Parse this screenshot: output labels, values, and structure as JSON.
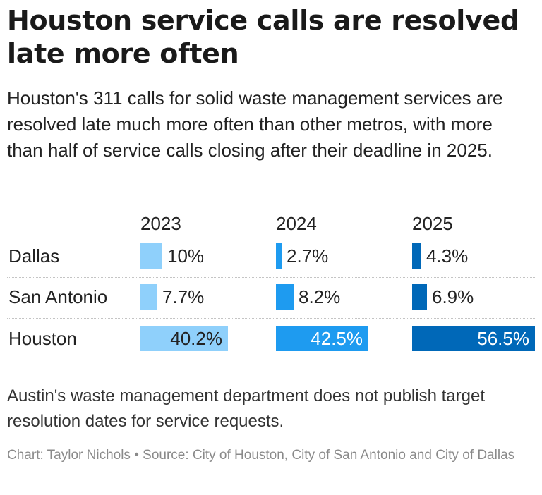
{
  "title": "Houston service calls are resolved late more often",
  "subtitle": "Houston's 311 calls for solid waste management services are resolved late much more often than other metros, with more than half of service calls closing after their deadline in 2025.",
  "note": "Austin's waste management department does not publish target resolution dates for service requests.",
  "credit": "Chart: Taylor Nichols • Source: City of Houston, City of San Antonio and City of Dallas",
  "colors": {
    "y2023": "#8fd0fb",
    "y2024": "#1e9bf0",
    "y2025": "#0068b8"
  },
  "chart_data": {
    "type": "bar",
    "orientation": "horizontal",
    "layout": "small-multiples",
    "categories": [
      "Dallas",
      "San Antonio",
      "Houston"
    ],
    "series": [
      {
        "name": "2023",
        "values": [
          10,
          7.7,
          40.2
        ],
        "labels": [
          "10%",
          "7.7%",
          "40.2%"
        ]
      },
      {
        "name": "2024",
        "values": [
          2.7,
          8.2,
          42.5
        ],
        "labels": [
          "2.7%",
          "8.2%",
          "42.5%"
        ]
      },
      {
        "name": "2025",
        "values": [
          4.3,
          6.9,
          56.5
        ],
        "labels": [
          "4.3%",
          "6.9%",
          "56.5%"
        ]
      }
    ],
    "unit": "%",
    "xlim": [
      0,
      56.5
    ],
    "grid": false,
    "legend": "none"
  }
}
